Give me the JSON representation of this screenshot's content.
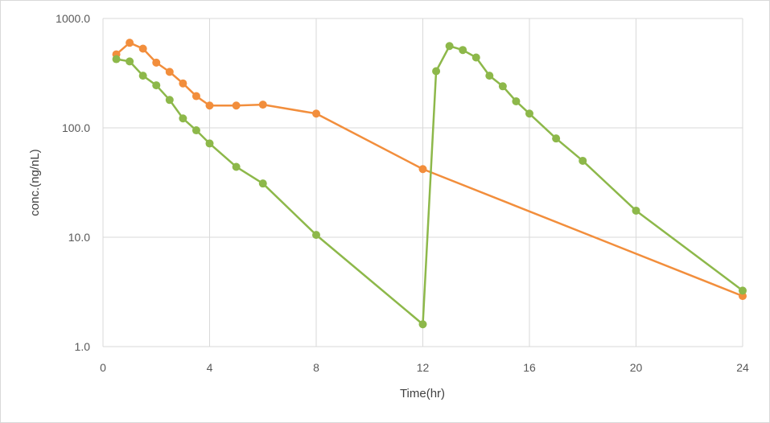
{
  "chart_data": {
    "type": "scatter",
    "xlabel": "Time(hr)",
    "ylabel": "conc.(ng/nL)",
    "y_scale": "log",
    "xlim": [
      0,
      24
    ],
    "ylim": [
      1.0,
      1000.0
    ],
    "x_ticks": [
      "0",
      "4",
      "8",
      "12",
      "16",
      "20",
      "24"
    ],
    "y_ticks": [
      "1.0",
      "10.0",
      "100.0",
      "1000.0"
    ],
    "grid": true,
    "legend": "none",
    "series": [
      {
        "color": "#f28e3c",
        "marker": "circle",
        "x": [
          0.5,
          1,
          1.5,
          2,
          2.5,
          3,
          3.5,
          4,
          5,
          6,
          8,
          12,
          24
        ],
        "y": [
          470,
          600,
          530,
          395,
          325,
          255,
          195,
          160,
          160,
          163,
          135,
          42,
          2.9
        ]
      },
      {
        "color": "#8db84a",
        "marker": "circle",
        "x": [
          0.5,
          1,
          1.5,
          2,
          2.5,
          3,
          3.5,
          4,
          5,
          6,
          8,
          12,
          12.5,
          13,
          13.5,
          14,
          14.5,
          15,
          15.5,
          16,
          17,
          18,
          20,
          24
        ],
        "y": [
          425,
          405,
          300,
          245,
          180,
          122,
          95,
          72,
          44,
          31,
          10.5,
          1.6,
          330,
          560,
          515,
          440,
          300,
          240,
          175,
          135,
          80,
          50,
          17.5,
          3.25
        ]
      }
    ]
  }
}
